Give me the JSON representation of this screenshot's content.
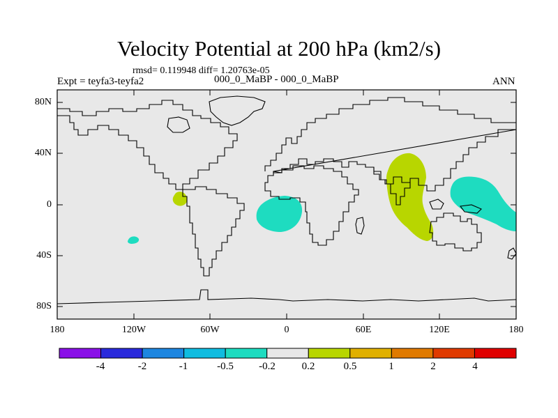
{
  "title": "Velocity Potential at 200 hPa (km2/s)",
  "stats": "rmsd= 0.119948 diff= 1.20763e-05",
  "experiment": "Expt = teyfa3-teyfa2",
  "cases": "000_0_MaBP - 000_0_MaBP",
  "season": "ANN",
  "map": {
    "background_color": "#e8e8e8",
    "lat_ticks": [
      "80N",
      "40N",
      "0",
      "40S",
      "80S"
    ],
    "lon_ticks": [
      "180",
      "120W",
      "60W",
      "0",
      "60E",
      "120E",
      "180"
    ],
    "anomalies": [
      {
        "name": "eastern-pacific-tropical-positive",
        "color": "#b8d600"
      },
      {
        "name": "south-pacific-negative",
        "color": "#1edcc0"
      },
      {
        "name": "tropical-atlantic-negative",
        "color": "#1edcc0"
      },
      {
        "name": "indian-ocean-positive",
        "color": "#b8d600"
      },
      {
        "name": "western-pacific-negative",
        "color": "#1edcc0"
      }
    ]
  },
  "colorbar": {
    "colors": [
      "#8a10e8",
      "#2a2adc",
      "#1e86e0",
      "#10bce0",
      "#1edcc0",
      "#e8e8e8",
      "#b8d600",
      "#e0b000",
      "#e07a00",
      "#e03a00",
      "#e00000"
    ],
    "labels": [
      "-4",
      "-2",
      "-1",
      "-0.5",
      "-0.2",
      "0.2",
      "0.5",
      "1",
      "2",
      "4"
    ]
  }
}
